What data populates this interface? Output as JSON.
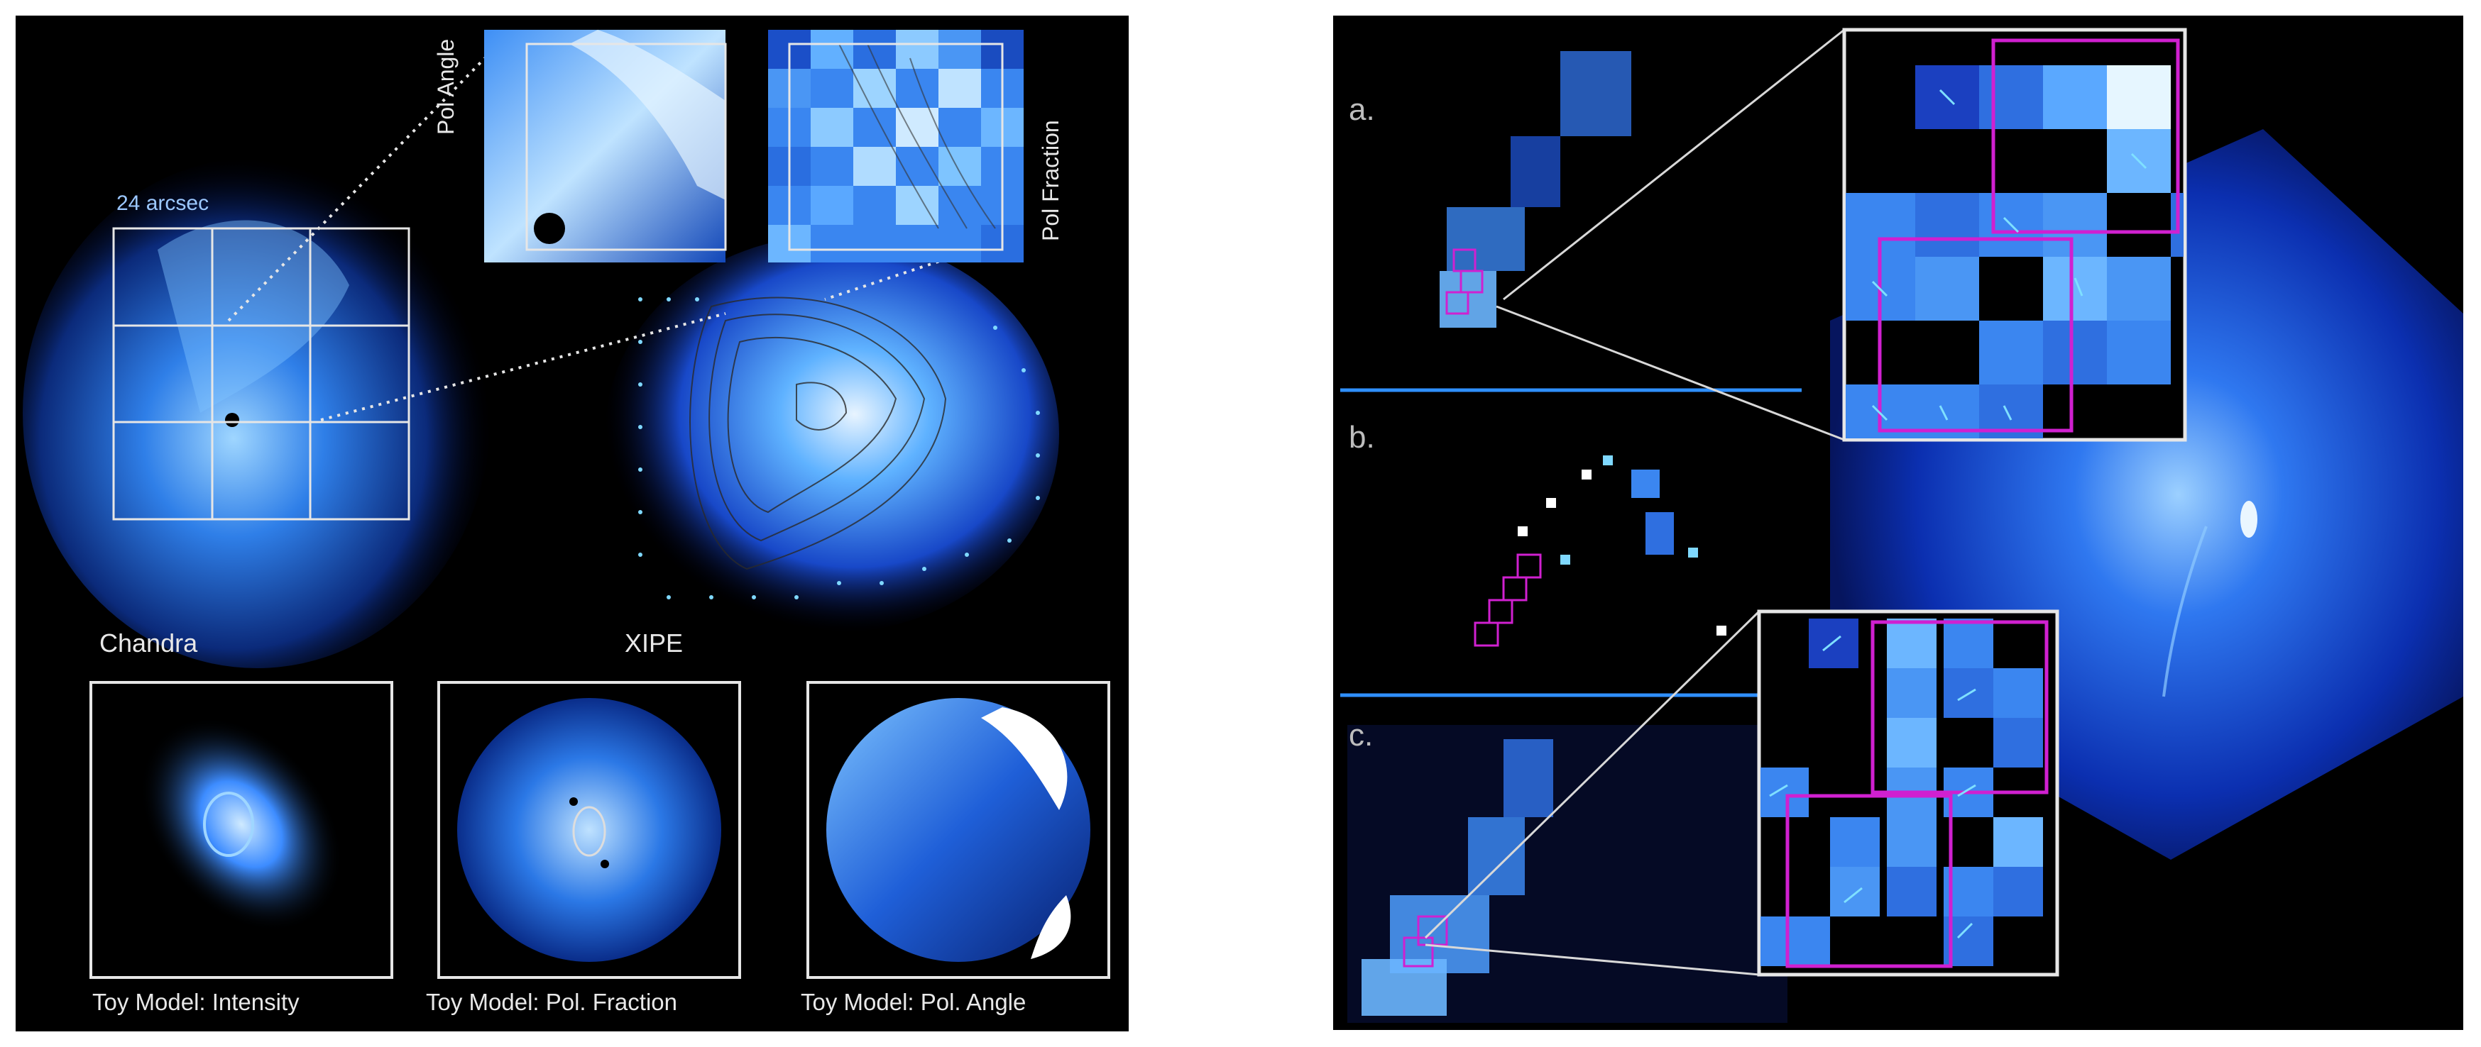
{
  "left_panel": {
    "scale_label": "24 arcsec",
    "pol_angle_label": "Pol Angle",
    "pol_fraction_label": "Pol Fraction",
    "chandra_label": "Chandra",
    "xipe_label": "XIPE",
    "toy_models": [
      {
        "caption": "Toy Model: Intensity"
      },
      {
        "caption": "Toy Model: Pol. Fraction"
      },
      {
        "caption": "Toy Model: Pol. Angle"
      }
    ]
  },
  "right_panel": {
    "rows": [
      {
        "label": "a."
      },
      {
        "label": "b."
      },
      {
        "label": "c."
      }
    ]
  },
  "colors": {
    "background": "#000000",
    "accent_blue": "#2f8fff",
    "box_magenta": "#d020d0",
    "frame_white": "#e6e6e6"
  }
}
